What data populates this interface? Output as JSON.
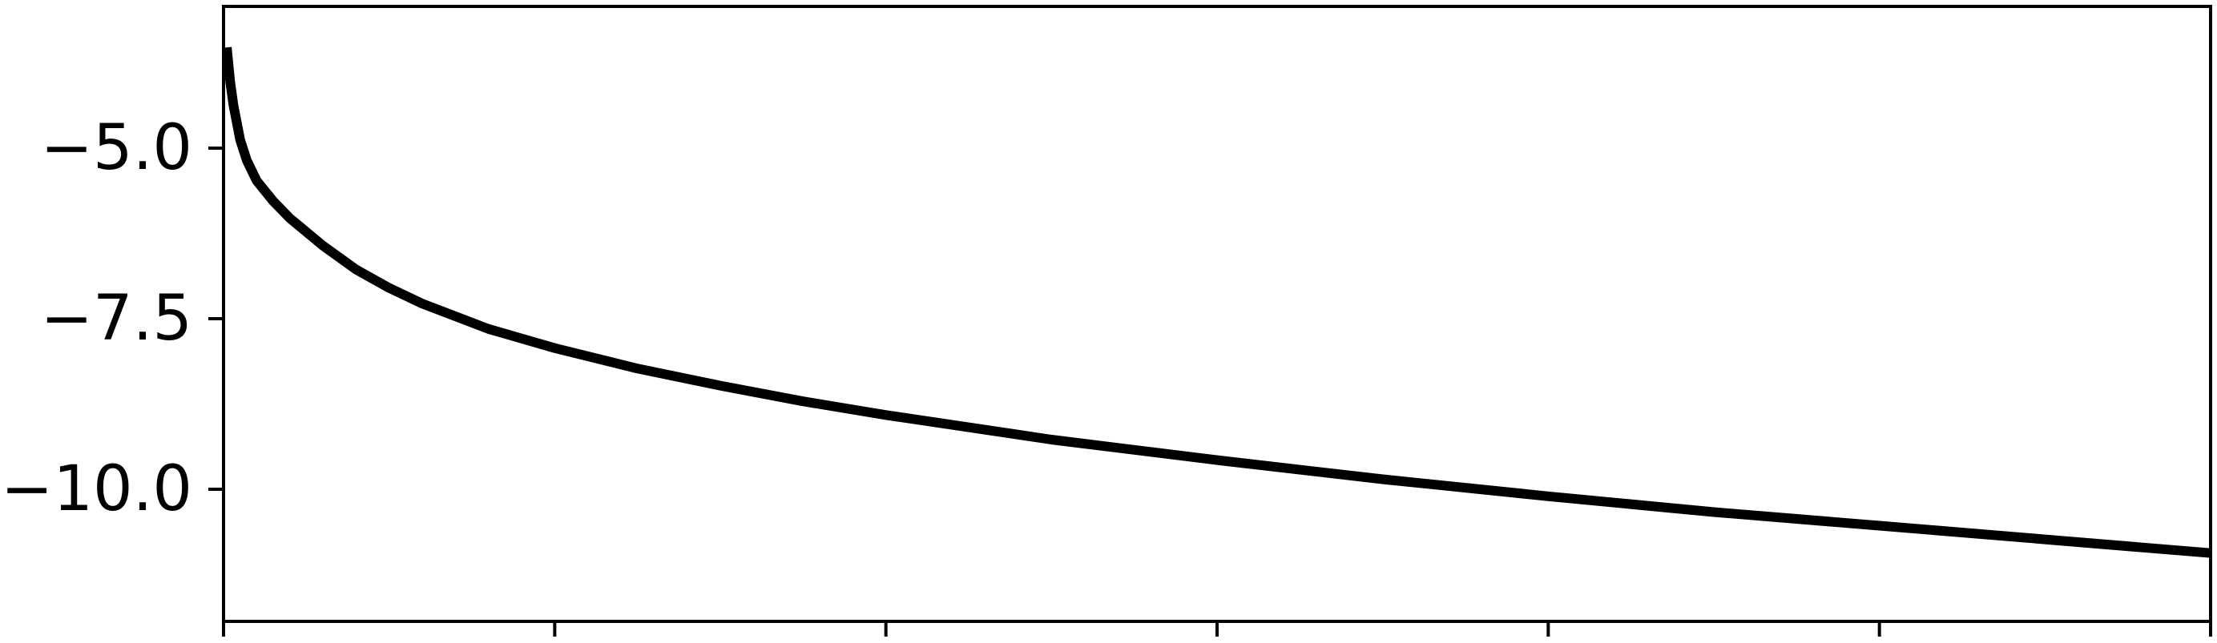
{
  "chart_data": {
    "type": "line",
    "title": "",
    "xlabel": "",
    "ylabel": "",
    "xlim": [
      0,
      6
    ],
    "ylim": [
      -12.0,
      -3.0
    ],
    "grid": false,
    "x_ticks": [
      0,
      1,
      2,
      3,
      4,
      5,
      6
    ],
    "x_tick_labels": [],
    "y_ticks": [
      -5.0,
      -7.5,
      -10.0
    ],
    "y_tick_labels": [
      "−5.0",
      "−7.5",
      "−10.0"
    ],
    "series": [
      {
        "color": "#000000",
        "x": [
          0.01,
          0.02,
          0.03,
          0.05,
          0.07,
          0.1,
          0.15,
          0.2,
          0.3,
          0.4,
          0.5,
          0.6,
          0.8,
          1.0,
          1.25,
          1.5,
          1.75,
          2.0,
          2.5,
          3.0,
          3.5,
          4.0,
          4.5,
          5.0,
          5.5,
          6.0
        ],
        "y": [
          -3.6,
          -4.1,
          -4.45,
          -4.95,
          -5.25,
          -5.55,
          -5.85,
          -6.1,
          -6.5,
          -6.85,
          -7.12,
          -7.35,
          -7.72,
          -8.0,
          -8.3,
          -8.55,
          -8.78,
          -8.98,
          -9.34,
          -9.64,
          -9.92,
          -10.17,
          -10.4,
          -10.6,
          -10.8,
          -11.0
        ]
      }
    ]
  }
}
